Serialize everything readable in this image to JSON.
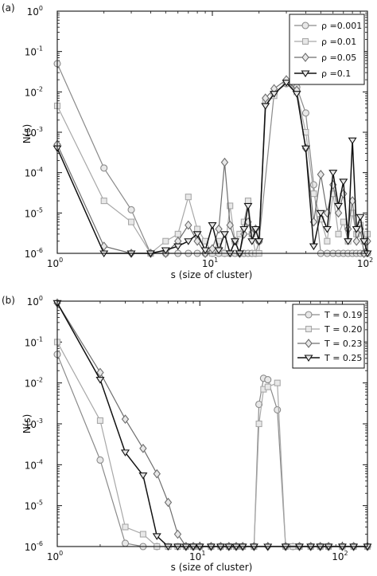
{
  "chart_data": [
    {
      "type": "line",
      "panel_label": "(a)",
      "xlabel": "s (size of cluster)",
      "ylabel": "N(s)",
      "xscale": "log",
      "yscale": "log",
      "xlim": [
        1,
        100
      ],
      "ylim": [
        1e-06,
        1
      ],
      "x_ticks": [
        {
          "value": 1,
          "base": "10",
          "exp": "0"
        },
        {
          "value": 10,
          "base": "10",
          "exp": "1"
        },
        {
          "value": 100,
          "base": "10",
          "exp": "2"
        }
      ],
      "y_ticks": [
        {
          "value": 1,
          "base": "10",
          "exp": "0"
        },
        {
          "value": 0.1,
          "base": "10",
          "exp": "-1"
        },
        {
          "value": 0.01,
          "base": "10",
          "exp": "-2"
        },
        {
          "value": 0.001,
          "base": "10",
          "exp": "-3"
        },
        {
          "value": 0.0001,
          "base": "10",
          "exp": "-4"
        },
        {
          "value": 1e-05,
          "base": "10",
          "exp": "-5"
        },
        {
          "value": 1e-06,
          "base": "10",
          "exp": "-6"
        }
      ],
      "legend_position": "top-right",
      "series": [
        {
          "name": "ρ =0.001",
          "marker": "circle",
          "color": "#8a8a8a",
          "x": [
            1,
            2,
            3,
            4,
            5,
            6,
            7,
            8,
            9,
            10,
            11,
            12,
            13,
            14,
            15,
            16,
            17,
            18,
            19,
            20,
            25,
            30,
            35,
            40,
            45,
            50,
            55,
            60,
            65,
            70,
            75,
            80,
            85,
            90,
            95,
            100
          ],
          "y": [
            0.05,
            0.00013,
            1.2e-05,
            1e-06,
            1e-06,
            1e-06,
            1e-06,
            1e-06,
            1e-06,
            1e-06,
            1e-06,
            1e-06,
            1e-06,
            1e-06,
            1e-06,
            1e-06,
            1e-06,
            1e-06,
            1e-06,
            2e-06,
            0.009,
            0.016,
            0.013,
            0.003,
            5e-05,
            1e-06,
            1e-06,
            1e-06,
            1e-06,
            1e-06,
            1e-06,
            1e-06,
            1e-06,
            1e-06,
            1e-06,
            1e-06
          ]
        },
        {
          "name": "ρ =0.01",
          "marker": "square",
          "color": "#a8a8a8",
          "x": [
            1,
            2,
            3,
            4,
            5,
            6,
            7,
            8,
            9,
            10,
            11,
            12,
            13,
            14,
            15,
            16,
            17,
            18,
            19,
            20,
            22,
            25,
            30,
            35,
            40,
            45,
            50,
            55,
            60,
            65,
            70,
            75,
            80,
            85,
            90,
            95,
            100
          ],
          "y": [
            0.0045,
            2e-05,
            6e-06,
            1e-06,
            2e-06,
            3e-06,
            2.5e-05,
            4e-06,
            2e-06,
            1e-06,
            2e-06,
            1e-06,
            1.5e-05,
            2e-06,
            3e-06,
            6e-06,
            2e-05,
            3e-06,
            1e-06,
            1e-06,
            0.006,
            0.008,
            0.018,
            0.01,
            0.001,
            3e-05,
            7e-06,
            2e-06,
            3e-05,
            3e-06,
            6e-06,
            2e-06,
            1e-05,
            3e-06,
            5e-06,
            2e-06,
            3e-06
          ]
        },
        {
          "name": "ρ =0.05",
          "marker": "diamond",
          "color": "#6e6e6e",
          "x": [
            1,
            2,
            3,
            4,
            5,
            6,
            7,
            8,
            9,
            10,
            11,
            12,
            13,
            14,
            15,
            16,
            17,
            18,
            19,
            20,
            22,
            25,
            30,
            35,
            40,
            45,
            50,
            55,
            60,
            65,
            70,
            75,
            80,
            85,
            90,
            95,
            100
          ],
          "y": [
            0.0005,
            1.5e-06,
            1e-06,
            1e-06,
            1e-06,
            2e-06,
            5e-06,
            2e-06,
            1e-06,
            1.3e-06,
            4e-06,
            0.00018,
            5e-06,
            2e-06,
            1e-06,
            3e-06,
            6e-06,
            3e-06,
            4e-06,
            2e-06,
            0.007,
            0.012,
            0.02,
            0.011,
            0.0004,
            6e-06,
            9e-05,
            1e-05,
            5e-05,
            1e-05,
            3e-05,
            4e-06,
            2e-05,
            2e-06,
            4e-06,
            1e-06,
            2e-06
          ]
        },
        {
          "name": "ρ =0.1",
          "marker": "triangle-down",
          "color": "#111111",
          "x": [
            1,
            2,
            3,
            4,
            5,
            6,
            7,
            8,
            9,
            10,
            11,
            12,
            13,
            14,
            15,
            16,
            17,
            18,
            19,
            20,
            22,
            25,
            30,
            35,
            40,
            45,
            50,
            55,
            60,
            65,
            70,
            75,
            80,
            85,
            90,
            95,
            100
          ],
          "y": [
            0.0004,
            1e-06,
            1e-06,
            1e-06,
            1.2e-06,
            1.5e-06,
            2e-06,
            3e-06,
            1.2e-06,
            5e-06,
            1.2e-06,
            3e-06,
            1e-06,
            2e-06,
            1e-06,
            4e-06,
            1.5e-05,
            2e-06,
            4e-06,
            2e-06,
            0.0045,
            0.009,
            0.017,
            0.009,
            0.0004,
            1.5e-06,
            1e-05,
            4e-06,
            0.0001,
            1.5e-05,
            6e-05,
            2e-06,
            0.00063,
            4e-06,
            8e-06,
            2e-06,
            1e-06
          ]
        }
      ]
    },
    {
      "type": "line",
      "panel_label": "(b)",
      "xlabel": "s (size of cluster)",
      "ylabel": "N(s)",
      "xscale": "log",
      "yscale": "log",
      "xlim": [
        1,
        150
      ],
      "ylim": [
        1e-06,
        1
      ],
      "x_ticks": [
        {
          "value": 1,
          "base": "10",
          "exp": "0"
        },
        {
          "value": 10,
          "base": "10",
          "exp": "1"
        },
        {
          "value": 100,
          "base": "10",
          "exp": "2"
        }
      ],
      "y_ticks": [
        {
          "value": 1,
          "base": "10",
          "exp": "0"
        },
        {
          "value": 0.1,
          "base": "10",
          "exp": "-1"
        },
        {
          "value": 0.01,
          "base": "10",
          "exp": "-2"
        },
        {
          "value": 0.001,
          "base": "10",
          "exp": "-3"
        },
        {
          "value": 0.0001,
          "base": "10",
          "exp": "-4"
        },
        {
          "value": 1e-05,
          "base": "10",
          "exp": "-5"
        },
        {
          "value": 1e-06,
          "base": "10",
          "exp": "-6"
        }
      ],
      "legend_position": "top-right",
      "series": [
        {
          "name": "T = 0.19",
          "marker": "circle",
          "color": "#8a8a8a",
          "x": [
            1,
            2,
            3,
            4,
            5,
            6,
            7,
            8,
            9,
            10,
            12,
            14,
            16,
            18,
            20,
            24,
            26,
            28,
            30,
            35,
            40,
            45,
            50,
            60,
            70,
            80,
            100,
            120,
            150
          ],
          "y": [
            0.05,
            0.00013,
            1.2e-06,
            1e-06,
            1e-06,
            1e-06,
            1e-06,
            1e-06,
            1e-06,
            1e-06,
            1e-06,
            1e-06,
            1e-06,
            1e-06,
            1e-06,
            1e-06,
            0.003,
            0.013,
            0.012,
            0.0022,
            1e-06,
            1e-06,
            1e-06,
            1e-06,
            1e-06,
            1e-06,
            1e-06,
            1e-06,
            1e-06
          ]
        },
        {
          "name": "T = 0.20",
          "marker": "square",
          "color": "#a8a8a8",
          "x": [
            1,
            2,
            3,
            4,
            5,
            6,
            7,
            8,
            9,
            10,
            12,
            14,
            16,
            18,
            20,
            24,
            26,
            28,
            30,
            35,
            40,
            45,
            50,
            60,
            70,
            80,
            100,
            120,
            150
          ],
          "y": [
            0.1,
            0.0012,
            3e-06,
            2e-06,
            1e-06,
            1e-06,
            1e-06,
            1e-06,
            1e-06,
            1e-06,
            1e-06,
            1e-06,
            1e-06,
            1e-06,
            1e-06,
            1e-06,
            0.001,
            0.007,
            0.008,
            0.01,
            1e-06,
            1e-06,
            1e-06,
            1e-06,
            1e-06,
            1e-06,
            1e-06,
            1e-06,
            1e-06
          ]
        },
        {
          "name": "T = 0.23",
          "marker": "diamond",
          "color": "#6e6e6e",
          "x": [
            1,
            2,
            3,
            4,
            5,
            6,
            7,
            8,
            9,
            10,
            12,
            14,
            16,
            18,
            20,
            24,
            30,
            40,
            50,
            60,
            70,
            80,
            100,
            120,
            150
          ],
          "y": [
            0.9,
            0.018,
            0.0013,
            0.00025,
            6e-05,
            1.2e-05,
            2e-06,
            1e-06,
            1e-06,
            1e-06,
            1e-06,
            1e-06,
            1e-06,
            1e-06,
            1e-06,
            1e-06,
            1e-06,
            1e-06,
            1e-06,
            1e-06,
            1e-06,
            1e-06,
            1e-06,
            1e-06,
            1e-06
          ]
        },
        {
          "name": "T = 0.25",
          "marker": "triangle-down",
          "color": "#111111",
          "x": [
            1,
            2,
            3,
            4,
            5,
            6,
            7,
            8,
            9,
            10,
            12,
            14,
            16,
            18,
            20,
            24,
            30,
            40,
            50,
            60,
            70,
            80,
            100,
            120,
            150
          ],
          "y": [
            0.9,
            0.012,
            0.0002,
            5.5e-05,
            1.8e-06,
            1e-06,
            1e-06,
            1e-06,
            1e-06,
            1e-06,
            1e-06,
            1e-06,
            1e-06,
            1e-06,
            1e-06,
            1e-06,
            1e-06,
            1e-06,
            1e-06,
            1e-06,
            1e-06,
            1e-06,
            1e-06,
            1e-06,
            1e-06
          ]
        }
      ]
    }
  ]
}
